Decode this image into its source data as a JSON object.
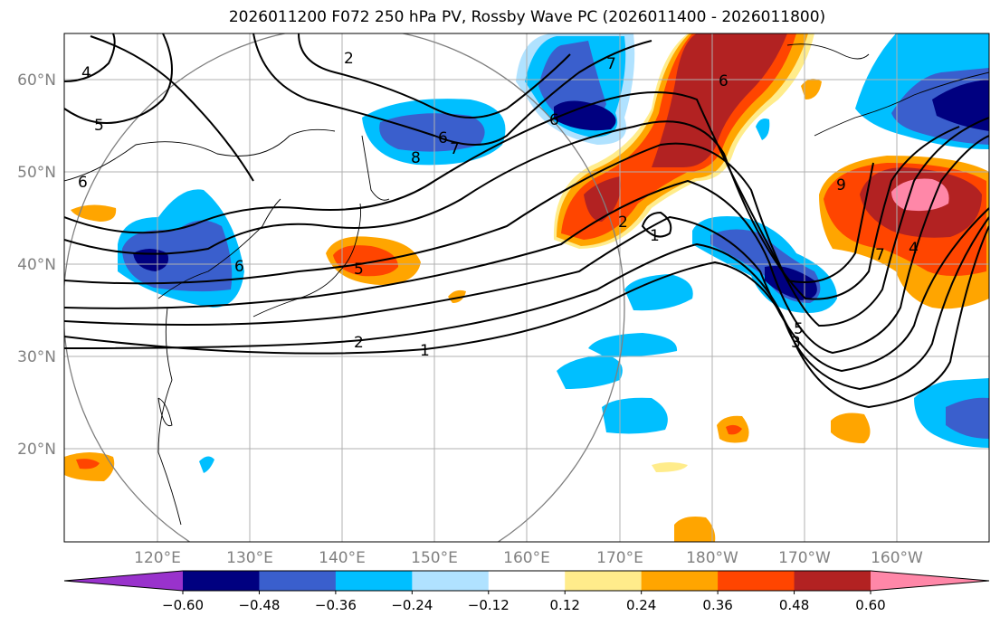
{
  "title": "2026011200 F072 250 hPa PV, Rossby Wave PC (2026011400 - 2026011800)",
  "lon_labels": [
    "120°E",
    "130°E",
    "140°E",
    "150°E",
    "160°E",
    "170°E",
    "180°W",
    "170°W",
    "160°W"
  ],
  "lat_labels": [
    "60°N",
    "50°N",
    "40°N",
    "30°N",
    "20°N"
  ],
  "colorbar": {
    "ticks": [
      "−0.60",
      "−0.48",
      "−0.36",
      "−0.24",
      "−0.12",
      "0.12",
      "0.24",
      "0.36",
      "0.48",
      "0.60"
    ],
    "colors": [
      "#9932cc",
      "#000080",
      "#3a5fcd",
      "#00bfff",
      "#b0e2ff",
      "#ffffff",
      "#ffec8b",
      "#ffa500",
      "#ff4500",
      "#b22222",
      "#ff87a8"
    ]
  },
  "contour_labels": [
    "4",
    "2",
    "5",
    "6",
    "7",
    "8",
    "6",
    "5",
    "2",
    "1",
    "6",
    "2",
    "1",
    "7",
    "9",
    "7",
    "4",
    "5",
    "3",
    "6",
    "6"
  ]
}
